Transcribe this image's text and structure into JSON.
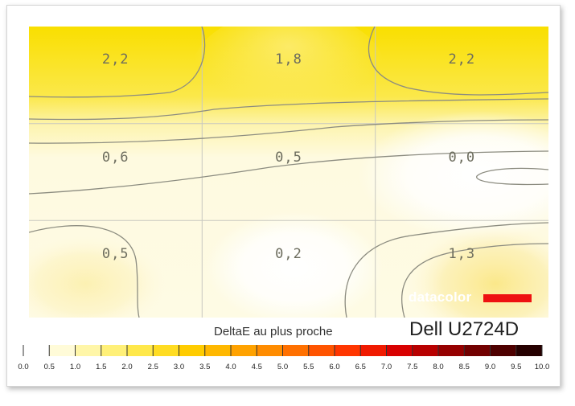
{
  "chart_data": {
    "type": "heatmap",
    "monitor": "Dell U2724D",
    "legend_title": "DeltaE au plus proche",
    "brand": "datacolor",
    "grid": {
      "rows": 3,
      "cols": 3
    },
    "values": [
      [
        "2,2",
        "1,8",
        "2,2"
      ],
      [
        "0,6",
        "0,5",
        "0,0"
      ],
      [
        "0,5",
        "0,2",
        "1,3"
      ]
    ],
    "scale": {
      "min": 0,
      "max": 10,
      "tick_labels": [
        "0.0",
        "0.5",
        "1.0",
        "1.5",
        "2.0",
        "2.5",
        "3.0",
        "3.5",
        "4.0",
        "4.5",
        "5.0",
        "5.5",
        "6.0",
        "6.5",
        "7.0",
        "7.5",
        "8.0",
        "8.5",
        "9.0",
        "9.5",
        "10.0"
      ],
      "colors": [
        "#ffffff",
        "#fffbd8",
        "#fff6a8",
        "#fff078",
        "#ffe84a",
        "#ffdc22",
        "#ffcc00",
        "#ffb800",
        "#ffa200",
        "#ff8c00",
        "#ff7000",
        "#ff5400",
        "#ff3600",
        "#f01a00",
        "#d80000",
        "#b80000",
        "#960000",
        "#720000",
        "#4e0000",
        "#260000"
      ]
    },
    "colors": {
      "line": "#8c8c80",
      "grid": "#c8c8c0",
      "brand_bar": "#ee1111"
    }
  }
}
